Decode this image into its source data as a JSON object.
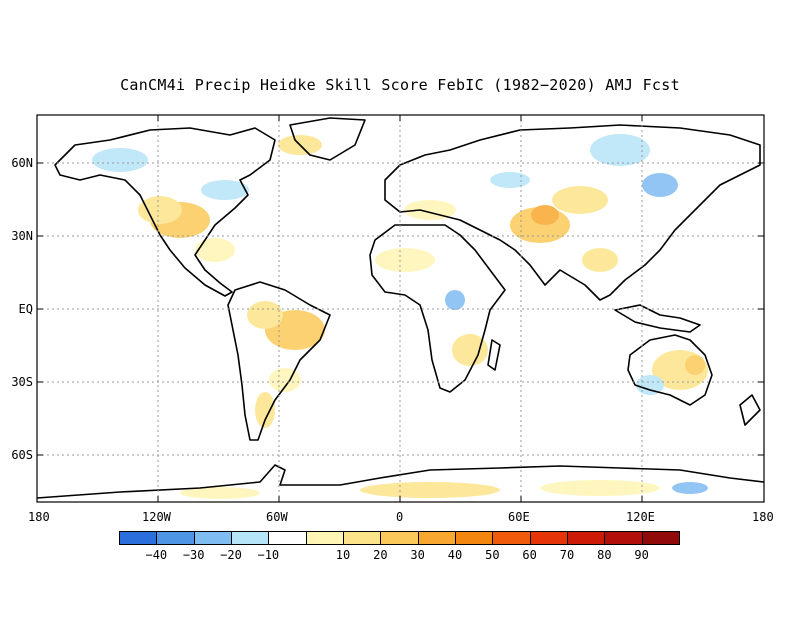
{
  "title": "CanCM4i Precip Heidke Skill Score FebIC (1982−2020) AMJ Fcst",
  "lon_labels": [
    "180",
    "120W",
    "60W",
    "0",
    "60E",
    "120E",
    "180"
  ],
  "lat_labels": [
    "60N",
    "30N",
    "EQ",
    "30S",
    "60S"
  ],
  "colorbar": {
    "colors": [
      "#2a6fdb",
      "#4f95e6",
      "#7fbcf1",
      "#b6e4f8",
      "#ffffff",
      "#fff5b5",
      "#fde38a",
      "#fbc95a",
      "#f8a830",
      "#f3860f",
      "#ef5a0b",
      "#e53508",
      "#cc1a06",
      "#b30f0a",
      "#8f0a08"
    ],
    "labels": [
      "−40",
      "−30",
      "−20",
      "−10",
      "10",
      "20",
      "30",
      "40",
      "50",
      "60",
      "70",
      "80",
      "90"
    ]
  },
  "map_data": {
    "lon_range": [
      -180,
      180
    ],
    "lat_range": [
      -80,
      80
    ],
    "grid": true,
    "field": "Heidke Skill Score",
    "palette_range": [
      -50,
      100
    ]
  }
}
